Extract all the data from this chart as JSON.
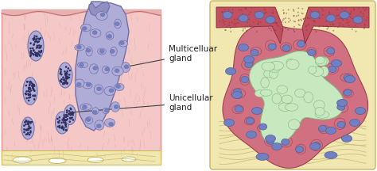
{
  "fig_width": 4.74,
  "fig_height": 2.16,
  "dpi": 100,
  "bg_color": "#ffffff",
  "label_multicellular": "Multicelluar\ngland",
  "label_unicellular": "Unicellular\ngland",
  "pink_tissue": "#f5c8c8",
  "pink_border": "#d89090",
  "pink_stipple": "#e8a0a0",
  "purple_fill": "#b0acd8",
  "purple_border": "#7070a8",
  "purple_dark": "#9090c0",
  "yellow_base": "#f0e8b0",
  "yellow_border": "#c8b860",
  "blue_nucleus": "#7080c0",
  "blue_nucleus_border": "#5060a0",
  "dark_dot": "#303060",
  "red_epi": "#c05060",
  "red_epi_fill": "#d07080",
  "green_fill": "#c8e8c0",
  "green_border": "#80b880",
  "tan_fiber": "#c8b870",
  "text_color": "#202020",
  "line_color": "#404040",
  "label_fontsize": 7.5
}
